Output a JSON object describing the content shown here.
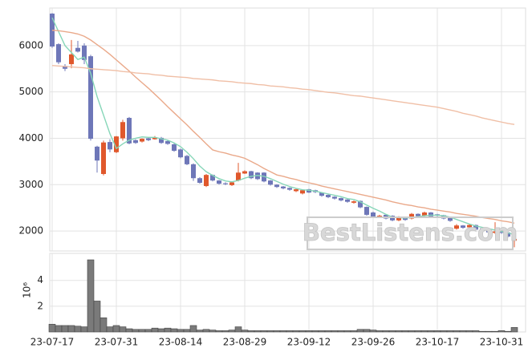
{
  "chart_data": {
    "type": "candlestick",
    "watermark": "BestListens.com",
    "categories": [
      "23-07-17",
      null,
      null,
      null,
      null,
      null,
      null,
      null,
      null,
      null,
      "23-07-31",
      null,
      null,
      null,
      null,
      null,
      null,
      null,
      null,
      null,
      "23-08-14",
      null,
      null,
      null,
      null,
      null,
      null,
      null,
      null,
      null,
      "23-08-29",
      null,
      null,
      null,
      null,
      null,
      null,
      null,
      null,
      null,
      "23-09-12",
      null,
      null,
      null,
      null,
      null,
      null,
      null,
      null,
      null,
      "23-09-26",
      null,
      null,
      null,
      null,
      null,
      null,
      null,
      null,
      null,
      "23-10-17",
      null,
      null,
      null,
      null,
      null,
      null,
      null,
      null,
      null,
      "23-10-31",
      null,
      null
    ],
    "open": [
      6690,
      6030,
      5560,
      5600,
      5950,
      6000,
      5770,
      3820,
      3230,
      3920,
      3700,
      4000,
      4440,
      3960,
      3930,
      4000,
      3980,
      4010,
      3940,
      3870,
      3760,
      3620,
      3440,
      3140,
      2970,
      3210,
      3090,
      3030,
      2990,
      3090,
      3240,
      3290,
      3260,
      3260,
      3090,
      3000,
      2960,
      2930,
      2860,
      2810,
      2900,
      2880,
      2830,
      2780,
      2740,
      2710,
      2680,
      2610,
      2650,
      2520,
      2400,
      2300,
      2350,
      2330,
      2230,
      2300,
      2270,
      2370,
      2330,
      2400,
      2360,
      2340,
      2290,
      2050,
      2120,
      2080,
      2130,
      2060,
      2010,
      1960,
      2000,
      1970,
      1790
    ],
    "high": [
      6700,
      6050,
      5600,
      6120,
      6100,
      6050,
      5800,
      3840,
      3950,
      3980,
      4050,
      4400,
      4460,
      3980,
      4000,
      4010,
      4050,
      4030,
      3960,
      3890,
      3780,
      3640,
      3460,
      3160,
      3230,
      3220,
      3100,
      3050,
      3070,
      3470,
      3310,
      3300,
      3270,
      3270,
      3100,
      3010,
      2970,
      2940,
      2920,
      2900,
      2910,
      2890,
      2840,
      2790,
      2750,
      2720,
      2690,
      2660,
      2660,
      2530,
      2420,
      2350,
      2360,
      2340,
      2320,
      2310,
      2390,
      2380,
      2420,
      2410,
      2370,
      2350,
      2300,
      2150,
      2130,
      2150,
      2140,
      2070,
      2020,
      2190,
      2010,
      1980,
      1860
    ],
    "low": [
      5950,
      5600,
      5450,
      5510,
      5850,
      5600,
      3950,
      3260,
      3200,
      3700,
      3680,
      3950,
      3870,
      3880,
      3910,
      3940,
      3970,
      3880,
      3860,
      3710,
      3570,
      3420,
      3080,
      3020,
      2950,
      3070,
      3000,
      2990,
      2970,
      3070,
      3230,
      3120,
      3100,
      3050,
      2980,
      2930,
      2900,
      2870,
      2840,
      2790,
      2820,
      2820,
      2740,
      2710,
      2680,
      2640,
      2610,
      2590,
      2490,
      2330,
      2290,
      2280,
      2250,
      2210,
      2210,
      2220,
      2250,
      2300,
      2310,
      2290,
      2310,
      2250,
      2200,
      2030,
      2050,
      2060,
      2010,
      1980,
      1950,
      1940,
      1940,
      1860,
      1650
    ],
    "close": [
      5980,
      5640,
      5500,
      5810,
      5870,
      5690,
      3990,
      3520,
      3910,
      3760,
      4040,
      4350,
      3890,
      3900,
      3990,
      3960,
      4020,
      3900,
      3880,
      3730,
      3590,
      3440,
      3140,
      3040,
      3210,
      3090,
      3020,
      3010,
      3050,
      3260,
      3290,
      3140,
      3120,
      3070,
      3000,
      2950,
      2920,
      2890,
      2900,
      2880,
      2830,
      2840,
      2760,
      2730,
      2700,
      2660,
      2630,
      2640,
      2510,
      2350,
      2310,
      2330,
      2270,
      2230,
      2310,
      2240,
      2370,
      2320,
      2400,
      2310,
      2330,
      2270,
      2220,
      2120,
      2070,
      2130,
      2030,
      2000,
      1970,
      1990,
      1960,
      1880,
      1830
    ],
    "up_color": "#e0582c",
    "down_color": "#6e77b8",
    "series": [
      {
        "color": "#86d6b8",
        "values": [
          6600,
          6300,
          6000,
          5850,
          5700,
          5750,
          5400,
          4900,
          4500,
          4100,
          3780,
          3880,
          3960,
          4000,
          4030,
          4020,
          4020,
          3990,
          3960,
          3900,
          3820,
          3700,
          3560,
          3400,
          3280,
          3200,
          3130,
          3080,
          3060,
          3090,
          3140,
          3180,
          3200,
          3180,
          3130,
          3070,
          3010,
          2960,
          2920,
          2890,
          2880,
          2860,
          2830,
          2800,
          2770,
          2740,
          2700,
          2680,
          2630,
          2560,
          2490,
          2430,
          2360,
          2300,
          2290,
          2280,
          2290,
          2310,
          2330,
          2340,
          2340,
          2330,
          2300,
          2250,
          2200,
          2150,
          2110,
          2080,
          2050,
          2020,
          1990,
          1960,
          1920
        ]
      },
      {
        "color": "#eaa98a",
        "values": [
          6330,
          6320,
          6300,
          6280,
          6250,
          6200,
          6120,
          6020,
          5920,
          5810,
          5690,
          5570,
          5450,
          5320,
          5200,
          5080,
          4950,
          4820,
          4680,
          4550,
          4420,
          4290,
          4150,
          4020,
          3880,
          3750,
          3710,
          3680,
          3640,
          3610,
          3570,
          3500,
          3430,
          3350,
          3280,
          3210,
          3180,
          3140,
          3110,
          3070,
          3040,
          3010,
          2970,
          2940,
          2910,
          2880,
          2850,
          2820,
          2790,
          2760,
          2730,
          2700,
          2670,
          2630,
          2600,
          2570,
          2550,
          2520,
          2500,
          2470,
          2450,
          2430,
          2410,
          2380,
          2360,
          2340,
          2320,
          2290,
          2270,
          2250,
          2220,
          2200,
          2170
        ]
      },
      {
        "color": "#f0bfa6",
        "values": [
          5570,
          5560,
          5550,
          5540,
          5530,
          5520,
          5500,
          5490,
          5480,
          5470,
          5460,
          5440,
          5430,
          5410,
          5400,
          5390,
          5370,
          5360,
          5340,
          5330,
          5320,
          5310,
          5290,
          5280,
          5270,
          5260,
          5240,
          5230,
          5220,
          5200,
          5190,
          5180,
          5160,
          5150,
          5130,
          5120,
          5110,
          5090,
          5080,
          5060,
          5050,
          5030,
          5010,
          4990,
          4980,
          4960,
          4940,
          4920,
          4910,
          4890,
          4870,
          4850,
          4830,
          4810,
          4790,
          4770,
          4750,
          4730,
          4710,
          4690,
          4670,
          4640,
          4610,
          4580,
          4540,
          4510,
          4480,
          4440,
          4410,
          4380,
          4350,
          4320,
          4300
        ]
      }
    ],
    "ylim": [
      1570,
      6810
    ],
    "yticks": [
      2000,
      3000,
      4000,
      5000,
      6000
    ],
    "grid": true,
    "volume": [
      0.6,
      0.5,
      0.5,
      0.5,
      0.45,
      0.4,
      5.6,
      2.4,
      1.1,
      0.4,
      0.5,
      0.4,
      0.25,
      0.2,
      0.2,
      0.2,
      0.3,
      0.25,
      0.3,
      0.25,
      0.2,
      0.2,
      0.5,
      0.15,
      0.2,
      0.15,
      0.1,
      0.1,
      0.15,
      0.4,
      0.15,
      0.1,
      0.1,
      0.1,
      0.1,
      0.1,
      0.1,
      0.1,
      0.1,
      0.1,
      0.1,
      0.1,
      0.1,
      0.1,
      0.1,
      0.1,
      0.1,
      0.1,
      0.2,
      0.2,
      0.15,
      0.1,
      0.1,
      0.1,
      0.1,
      0.1,
      0.1,
      0.1,
      0.1,
      0.1,
      0.1,
      0.1,
      0.1,
      0.1,
      0.1,
      0.1,
      0.1,
      0.05,
      0.05,
      0.05,
      0.1,
      0.05,
      0.35
    ],
    "volume_color": "#7a7a7a",
    "volume_label": "10⁶",
    "volume_ylim": [
      0,
      6.1
    ],
    "volume_yticks": [
      2,
      4
    ]
  }
}
